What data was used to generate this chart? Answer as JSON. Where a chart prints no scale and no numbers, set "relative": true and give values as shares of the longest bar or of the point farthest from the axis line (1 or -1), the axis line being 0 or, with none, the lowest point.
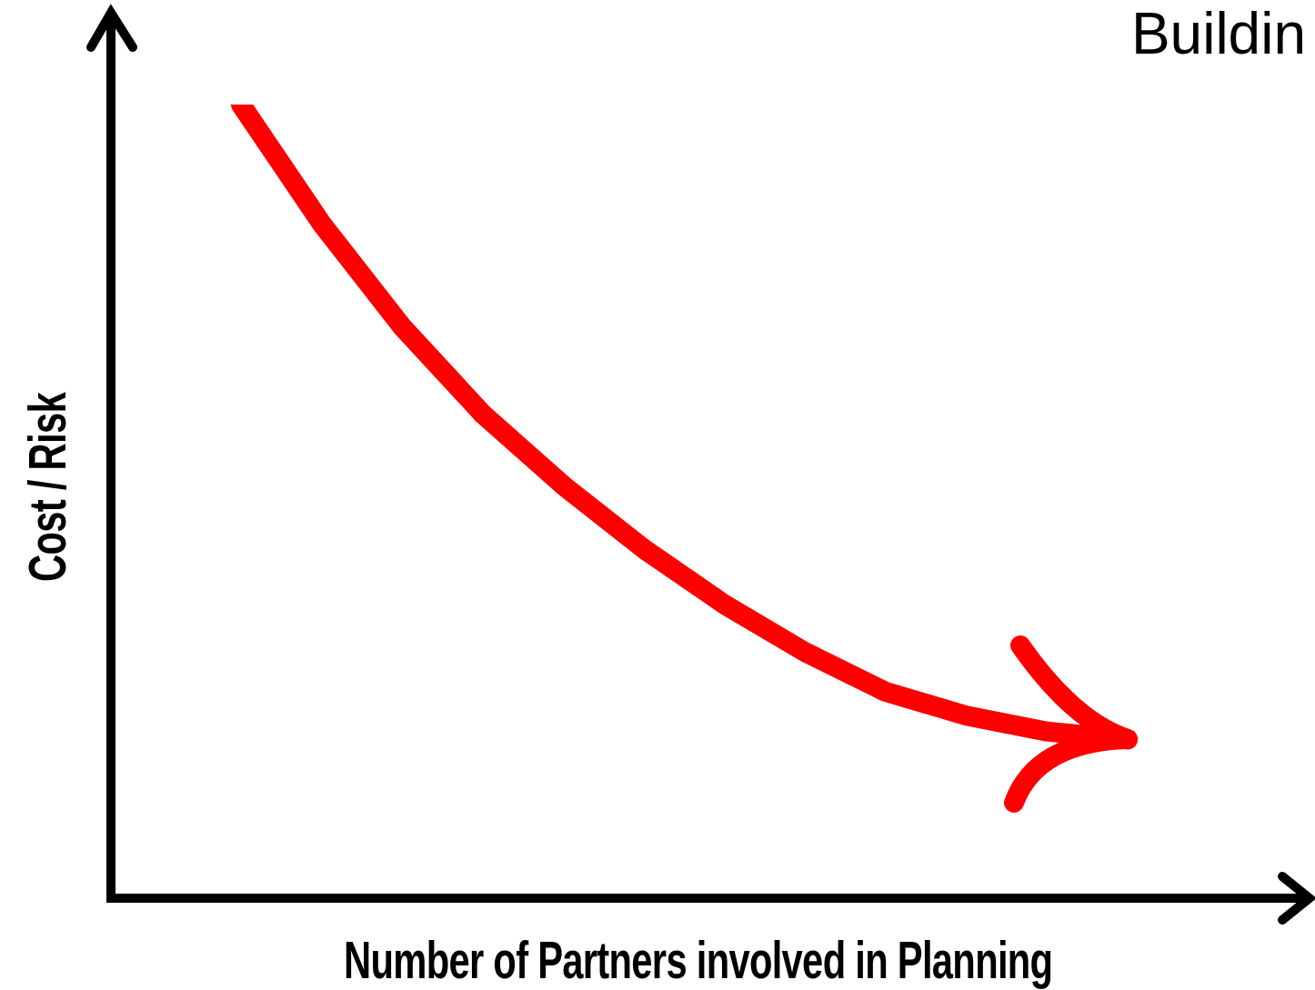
{
  "chart_data": {
    "type": "line",
    "title": "Buildin",
    "xlabel": "Number of Partners involved in  Planning",
    "ylabel": "Cost / Risk",
    "relative": true,
    "categories": [
      null,
      null,
      null,
      null,
      null,
      null,
      null,
      null,
      null,
      null,
      null,
      null
    ],
    "series": [
      {
        "color": "#ff0000",
        "values": [
          1,
          0.85,
          0.72,
          0.61,
          0.52,
          0.44,
          0.37,
          0.31,
          0.26,
          0.23,
          0.21,
          0.2
        ]
      }
    ],
    "legend": false,
    "grid": false,
    "marker": "none",
    "line_style": "solid"
  }
}
